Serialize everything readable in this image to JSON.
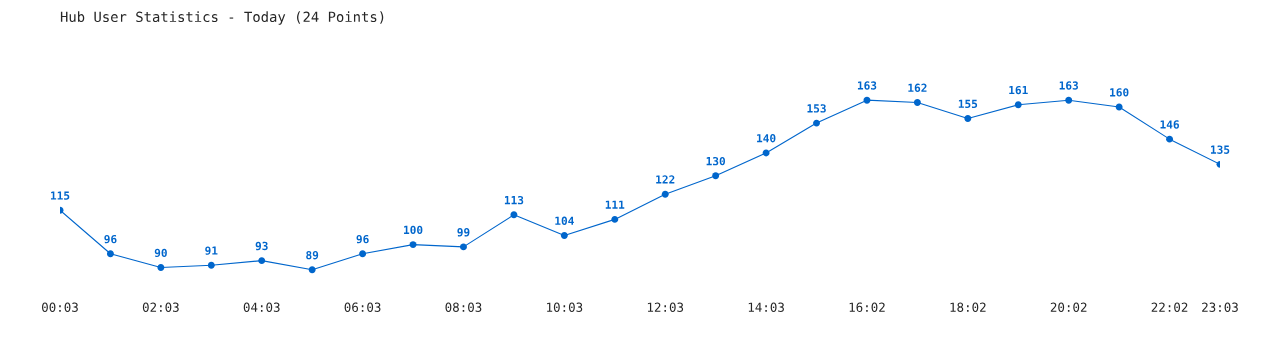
{
  "chart_data": {
    "type": "line",
    "title": "Hub User Statistics - Today (24 Points)",
    "categories": [
      "00:03",
      null,
      "02:03",
      null,
      "04:03",
      null,
      "06:03",
      null,
      "08:03",
      null,
      "10:03",
      null,
      "12:03",
      null,
      "14:03",
      null,
      "16:02",
      null,
      "18:02",
      null,
      "20:02",
      null,
      "22:02",
      "23:03"
    ],
    "series": [
      {
        "color": "#0066cc",
        "values": [
          115,
          96,
          90,
          91,
          93,
          89,
          96,
          100,
          99,
          113,
          104,
          111,
          122,
          130,
          140,
          153,
          163,
          162,
          155,
          161,
          163,
          160,
          146,
          135
        ]
      }
    ],
    "marker": "circle",
    "line_style": "solid",
    "data_labels": true,
    "grid": false,
    "legend": false,
    "tick_labels": "x"
  }
}
